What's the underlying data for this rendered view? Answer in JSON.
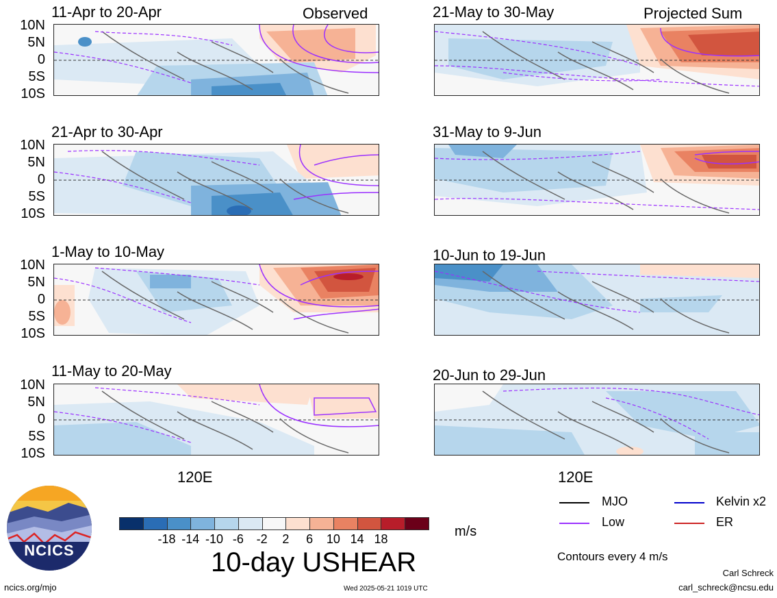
{
  "header": {
    "observed_label": "Observed",
    "projected_label": "Projected Sum"
  },
  "latitudes": [
    "10N",
    "5N",
    "0",
    "5S",
    "10S"
  ],
  "longitude_label": "120E",
  "panels_left": [
    {
      "period": "11-Apr to 20-Apr"
    },
    {
      "period": "21-Apr to 30-Apr"
    },
    {
      "period": "1-May to 10-May"
    },
    {
      "period": "11-May to 20-May"
    }
  ],
  "panels_right": [
    {
      "period": "21-May to 30-May"
    },
    {
      "period": "31-May to 9-Jun"
    },
    {
      "period": "10-Jun to 19-Jun"
    },
    {
      "period": "20-Jun to 29-Jun"
    }
  ],
  "colorbar": {
    "colors": [
      "#08306b",
      "#2a6db5",
      "#4a90c8",
      "#7fb3dd",
      "#b6d6ec",
      "#dbe9f4",
      "#f7f7f7",
      "#fde0d0",
      "#f6b295",
      "#e98262",
      "#d2553f",
      "#b81d2a",
      "#6b0019"
    ],
    "labels": [
      "-18",
      "-14",
      "-10",
      "-6",
      "-2",
      "2",
      "6",
      "10",
      "14",
      "18"
    ],
    "units": "m/s",
    "title": "10-day USHEAR"
  },
  "legend": {
    "mjo": "MJO",
    "low": "Low",
    "kelvin": "Kelvin x2",
    "er": "ER",
    "mjo_color": "#000000",
    "low_color": "#9b30ff",
    "kelvin_color": "#0000cc",
    "er_color": "#cc2222",
    "contours_note": "Contours every 4 m/s"
  },
  "footer": {
    "site": "ncics.org/mjo",
    "timestamp": "Wed 2025-05-21 1019 UTC",
    "author": "Carl Schreck",
    "email": "carl_schreck@ncsu.edu"
  },
  "logo": {
    "text": "NCICS"
  }
}
